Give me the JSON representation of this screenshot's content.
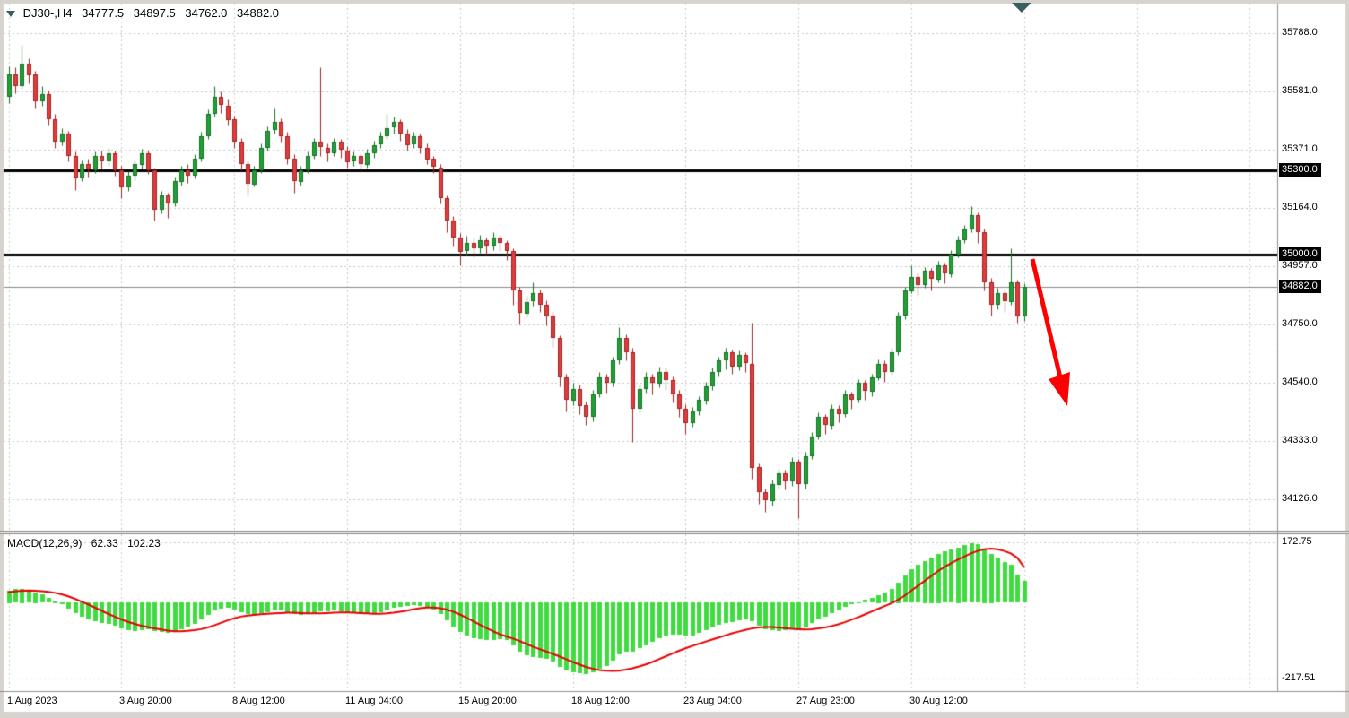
{
  "header": {
    "symbol_period": "DJ30-,H4",
    "open": "34777.5",
    "high": "34897.5",
    "low": "34762.0",
    "close": "34882.0"
  },
  "macd_header": {
    "name": "MACD(12,26,9)",
    "main_value": "62.33",
    "signal_value": "102.23"
  },
  "chart_data": {
    "type": "candlestick",
    "symbol": "DJ30-",
    "timeframe": "H4",
    "price_axis": {
      "ticks": [
        {
          "price": 35788,
          "label": "35788.0"
        },
        {
          "price": 35581,
          "label": "35581.0"
        },
        {
          "price": 35371,
          "label": "35371.0"
        },
        {
          "price": 35164,
          "label": "35164.0"
        },
        {
          "price": 34957,
          "label": "34957.0"
        },
        {
          "price": 34750,
          "label": "34750.0"
        },
        {
          "price": 34540,
          "label": "34540.0"
        },
        {
          "price": 34333,
          "label": "34333.0"
        },
        {
          "price": 34126,
          "label": "34126.0"
        }
      ]
    },
    "horizontal_levels": [
      {
        "price": 35300,
        "label": "35300.0"
      },
      {
        "price": 35000,
        "label": "35000.0"
      }
    ],
    "current_price": {
      "price": 34882,
      "label": "34882.0"
    },
    "time_axis": {
      "grid_interval_bars": 17,
      "labels": [
        {
          "text": "1 Aug 2023",
          "bar_index": 0
        },
        {
          "text": "3 Aug 20:00",
          "bar_index": 17
        },
        {
          "text": "8 Aug 12:00",
          "bar_index": 34
        },
        {
          "text": "11 Aug 04:00",
          "bar_index": 51
        },
        {
          "text": "15 Aug 20:00",
          "bar_index": 68
        },
        {
          "text": "18 Aug 12:00",
          "bar_index": 85
        },
        {
          "text": "23 Aug 04:00",
          "bar_index": 102
        },
        {
          "text": "27 Aug 23:00",
          "bar_index": 119
        },
        {
          "text": "30 Aug 12:00",
          "bar_index": 136
        }
      ]
    },
    "candles": [
      [
        35560,
        35670,
        35540,
        35640
      ],
      [
        35640,
        35665,
        35575,
        35600
      ],
      [
        35600,
        35745,
        35590,
        35680
      ],
      [
        35680,
        35700,
        35610,
        35640
      ],
      [
        35640,
        35655,
        35520,
        35545
      ],
      [
        35545,
        35600,
        35530,
        35570
      ],
      [
        35570,
        35585,
        35460,
        35480
      ],
      [
        35480,
        35500,
        35380,
        35400
      ],
      [
        35400,
        35450,
        35390,
        35430
      ],
      [
        35430,
        35440,
        35330,
        35350
      ],
      [
        35350,
        35365,
        35230,
        35270
      ],
      [
        35270,
        35335,
        35260,
        35320
      ],
      [
        35320,
        35340,
        35275,
        35300
      ],
      [
        35300,
        35365,
        35290,
        35350
      ],
      [
        35350,
        35370,
        35305,
        35330
      ],
      [
        35330,
        35380,
        35315,
        35360
      ],
      [
        35360,
        35370,
        35280,
        35300
      ],
      [
        35300,
        35315,
        35200,
        35240
      ],
      [
        35240,
        35295,
        35225,
        35280
      ],
      [
        35280,
        35335,
        35265,
        35320
      ],
      [
        35320,
        35375,
        35305,
        35360
      ],
      [
        35360,
        35370,
        35285,
        35300
      ],
      [
        35300,
        35310,
        35120,
        35160
      ],
      [
        35160,
        35225,
        35145,
        35210
      ],
      [
        35210,
        35220,
        35130,
        35180
      ],
      [
        35180,
        35275,
        35170,
        35260
      ],
      [
        35260,
        35315,
        35245,
        35300
      ],
      [
        35300,
        35320,
        35255,
        35280
      ],
      [
        35280,
        35355,
        35270,
        35340
      ],
      [
        35340,
        35435,
        35330,
        35420
      ],
      [
        35420,
        35515,
        35410,
        35500
      ],
      [
        35500,
        35600,
        35490,
        35560
      ],
      [
        35560,
        35580,
        35505,
        35530
      ],
      [
        35530,
        35550,
        35460,
        35480
      ],
      [
        35480,
        35495,
        35380,
        35400
      ],
      [
        35400,
        35415,
        35300,
        35320
      ],
      [
        35320,
        35335,
        35210,
        35250
      ],
      [
        35250,
        35315,
        35240,
        35300
      ],
      [
        35300,
        35395,
        35290,
        35380
      ],
      [
        35380,
        35455,
        35370,
        35440
      ],
      [
        35440,
        35520,
        35430,
        35470
      ],
      [
        35470,
        35485,
        35400,
        35420
      ],
      [
        35420,
        35435,
        35320,
        35340
      ],
      [
        35340,
        35355,
        35220,
        35260
      ],
      [
        35260,
        35315,
        35245,
        35300
      ],
      [
        35300,
        35365,
        35290,
        35350
      ],
      [
        35350,
        35415,
        35340,
        35400
      ],
      [
        35400,
        35665,
        35350,
        35380
      ],
      [
        35380,
        35395,
        35330,
        35360
      ],
      [
        35360,
        35415,
        35350,
        35400
      ],
      [
        35400,
        35410,
        35345,
        35370
      ],
      [
        35370,
        35385,
        35310,
        35330
      ],
      [
        35330,
        35365,
        35315,
        35350
      ],
      [
        35350,
        35360,
        35295,
        35320
      ],
      [
        35320,
        35375,
        35310,
        35360
      ],
      [
        35360,
        35405,
        35345,
        35390
      ],
      [
        35390,
        35435,
        35380,
        35420
      ],
      [
        35420,
        35500,
        35410,
        35450
      ],
      [
        35450,
        35490,
        35430,
        35470
      ],
      [
        35470,
        35480,
        35405,
        35430
      ],
      [
        35430,
        35445,
        35370,
        35390
      ],
      [
        35390,
        35435,
        35380,
        35420
      ],
      [
        35420,
        35430,
        35360,
        35380
      ],
      [
        35380,
        35395,
        35320,
        35340
      ],
      [
        35340,
        35350,
        35290,
        35310
      ],
      [
        35310,
        35320,
        35180,
        35200
      ],
      [
        35200,
        35210,
        35080,
        35120
      ],
      [
        35120,
        35135,
        35030,
        35060
      ],
      [
        35060,
        35075,
        34960,
        35010
      ],
      [
        35010,
        35065,
        34995,
        35040
      ],
      [
        35040,
        35055,
        34990,
        35020
      ],
      [
        35020,
        35070,
        35005,
        35050
      ],
      [
        35050,
        35060,
        35000,
        35030
      ],
      [
        35030,
        35080,
        35015,
        35060
      ],
      [
        35060,
        35070,
        35010,
        35040
      ],
      [
        35040,
        35050,
        34980,
        35010
      ],
      [
        35010,
        35020,
        34820,
        34870
      ],
      [
        34870,
        34885,
        34750,
        34790
      ],
      [
        34790,
        34850,
        34775,
        34830
      ],
      [
        34830,
        34900,
        34815,
        34860
      ],
      [
        34860,
        34875,
        34795,
        34820
      ],
      [
        34820,
        34835,
        34745,
        34780
      ],
      [
        34780,
        34795,
        34670,
        34700
      ],
      [
        34700,
        34710,
        34530,
        34560
      ],
      [
        34560,
        34575,
        34440,
        34480
      ],
      [
        34480,
        34540,
        34460,
        34520
      ],
      [
        34520,
        34535,
        34430,
        34460
      ],
      [
        34460,
        34475,
        34390,
        34420
      ],
      [
        34420,
        34515,
        34405,
        34500
      ],
      [
        34500,
        34580,
        34490,
        34560
      ],
      [
        34560,
        34575,
        34505,
        34540
      ],
      [
        34540,
        34635,
        34530,
        34620
      ],
      [
        34620,
        34740,
        34610,
        34700
      ],
      [
        34700,
        34715,
        34620,
        34650
      ],
      [
        34650,
        34665,
        34330,
        34450
      ],
      [
        34450,
        34535,
        34435,
        34520
      ],
      [
        34520,
        34580,
        34505,
        34560
      ],
      [
        34560,
        34575,
        34500,
        34540
      ],
      [
        34540,
        34600,
        34525,
        34580
      ],
      [
        34580,
        34595,
        34515,
        34550
      ],
      [
        34550,
        34565,
        34470,
        34500
      ],
      [
        34500,
        34515,
        34420,
        34450
      ],
      [
        34450,
        34465,
        34360,
        34400
      ],
      [
        34400,
        34455,
        34385,
        34440
      ],
      [
        34440,
        34495,
        34425,
        34480
      ],
      [
        34480,
        34545,
        34465,
        34530
      ],
      [
        34530,
        34595,
        34515,
        34580
      ],
      [
        34580,
        34635,
        34565,
        34620
      ],
      [
        34620,
        34665,
        34590,
        34650
      ],
      [
        34650,
        34660,
        34575,
        34600
      ],
      [
        34600,
        34655,
        34585,
        34640
      ],
      [
        34640,
        34650,
        34580,
        34610
      ],
      [
        34610,
        34755,
        34200,
        34240
      ],
      [
        34240,
        34255,
        34110,
        34150
      ],
      [
        34150,
        34165,
        34080,
        34120
      ],
      [
        34120,
        34195,
        34105,
        34180
      ],
      [
        34180,
        34235,
        34165,
        34220
      ],
      [
        34220,
        34230,
        34160,
        34190
      ],
      [
        34190,
        34275,
        34175,
        34260
      ],
      [
        34260,
        34270,
        34060,
        34180
      ],
      [
        34180,
        34295,
        34165,
        34280
      ],
      [
        34280,
        34365,
        34270,
        34350
      ],
      [
        34350,
        34435,
        34340,
        34420
      ],
      [
        34420,
        34430,
        34360,
        34390
      ],
      [
        34390,
        34465,
        34375,
        34450
      ],
      [
        34450,
        34460,
        34400,
        34430
      ],
      [
        34430,
        34515,
        34420,
        34500
      ],
      [
        34500,
        34510,
        34450,
        34480
      ],
      [
        34480,
        34555,
        34470,
        34540
      ],
      [
        34540,
        34550,
        34480,
        34510
      ],
      [
        34510,
        34575,
        34495,
        34560
      ],
      [
        34560,
        34625,
        34550,
        34610
      ],
      [
        34610,
        34620,
        34545,
        34580
      ],
      [
        34580,
        34665,
        34570,
        34650
      ],
      [
        34650,
        34795,
        34640,
        34780
      ],
      [
        34780,
        34885,
        34770,
        34870
      ],
      [
        34870,
        34960,
        34860,
        34920
      ],
      [
        34920,
        34935,
        34855,
        34890
      ],
      [
        34890,
        34955,
        34880,
        34940
      ],
      [
        34940,
        34950,
        34870,
        34910
      ],
      [
        34910,
        34975,
        34900,
        34960
      ],
      [
        34960,
        34970,
        34895,
        34930
      ],
      [
        34930,
        35015,
        34920,
        35000
      ],
      [
        35000,
        35065,
        34990,
        35050
      ],
      [
        35050,
        35105,
        35040,
        35090
      ],
      [
        35090,
        35170,
        35080,
        35140
      ],
      [
        35140,
        35150,
        35040,
        35080
      ],
      [
        35080,
        35090,
        34870,
        34900
      ],
      [
        34900,
        34915,
        34780,
        34820
      ],
      [
        34820,
        34880,
        34805,
        34860
      ],
      [
        34860,
        34870,
        34795,
        34830
      ],
      [
        34830,
        35020,
        34820,
        34900
      ],
      [
        34900,
        34910,
        34755,
        34780
      ],
      [
        34777.5,
        34897.5,
        34762,
        34882
      ]
    ],
    "macd": {
      "axis_ticks": [
        {
          "value": 172.75,
          "label": "172.75"
        },
        {
          "value": -217.51,
          "label": "-217.51"
        }
      ],
      "histogram": [
        35,
        38,
        40,
        36,
        30,
        24,
        14,
        4,
        -6,
        -18,
        -32,
        -42,
        -50,
        -55,
        -58,
        -62,
        -68,
        -75,
        -80,
        -82,
        -80,
        -76,
        -82,
        -85,
        -88,
        -84,
        -78,
        -70,
        -62,
        -50,
        -36,
        -24,
        -18,
        -16,
        -20,
        -28,
        -34,
        -36,
        -32,
        -28,
        -24,
        -24,
        -28,
        -34,
        -36,
        -34,
        -30,
        -26,
        -26,
        -24,
        -26,
        -30,
        -32,
        -34,
        -34,
        -32,
        -28,
        -22,
        -16,
        -12,
        -10,
        -8,
        -10,
        -14,
        -20,
        -34,
        -52,
        -70,
        -86,
        -96,
        -102,
        -106,
        -108,
        -108,
        -106,
        -108,
        -124,
        -142,
        -152,
        -156,
        -158,
        -162,
        -170,
        -184,
        -196,
        -200,
        -204,
        -206,
        -200,
        -190,
        -182,
        -168,
        -150,
        -140,
        -140,
        -132,
        -122,
        -112,
        -102,
        -96,
        -92,
        -92,
        -96,
        -94,
        -88,
        -80,
        -72,
        -64,
        -58,
        -56,
        -52,
        -48,
        -54,
        -66,
        -76,
        -80,
        -82,
        -80,
        -76,
        -78,
        -72,
        -60,
        -48,
        -40,
        -30,
        -22,
        -12,
        -6,
        2,
        8,
        14,
        22,
        28,
        40,
        58,
        78,
        96,
        108,
        120,
        130,
        140,
        146,
        152,
        158,
        164,
        170,
        168,
        156,
        140,
        128,
        116,
        108,
        80,
        62
      ],
      "signal": [
        30,
        32,
        34,
        35,
        34,
        33,
        31,
        28,
        24,
        18,
        11,
        3,
        -5,
        -14,
        -23,
        -32,
        -40,
        -48,
        -55,
        -61,
        -66,
        -70,
        -74,
        -77,
        -80,
        -82,
        -82,
        -81,
        -79,
        -76,
        -71,
        -65,
        -58,
        -51,
        -45,
        -40,
        -37,
        -35,
        -33,
        -32,
        -31,
        -30,
        -29,
        -29,
        -30,
        -31,
        -31,
        -31,
        -30,
        -29,
        -28,
        -28,
        -29,
        -30,
        -31,
        -32,
        -32,
        -31,
        -29,
        -26,
        -23,
        -19,
        -16,
        -14,
        -14,
        -16,
        -20,
        -26,
        -34,
        -43,
        -53,
        -63,
        -73,
        -82,
        -90,
        -97,
        -103,
        -110,
        -118,
        -126,
        -133,
        -140,
        -147,
        -154,
        -162,
        -170,
        -177,
        -184,
        -189,
        -193,
        -195,
        -196,
        -195,
        -192,
        -188,
        -183,
        -177,
        -170,
        -162,
        -154,
        -146,
        -138,
        -131,
        -124,
        -118,
        -112,
        -106,
        -100,
        -94,
        -88,
        -83,
        -78,
        -74,
        -71,
        -70,
        -70,
        -71,
        -73,
        -75,
        -76,
        -77,
        -76,
        -74,
        -71,
        -67,
        -62,
        -56,
        -49,
        -42,
        -34,
        -26,
        -18,
        -10,
        -2,
        8,
        20,
        34,
        48,
        62,
        76,
        90,
        102,
        113,
        123,
        132,
        141,
        148,
        153,
        155,
        153,
        148,
        141,
        128,
        102
      ]
    }
  },
  "annotations": {
    "trend_arrow": {
      "direction": "down-right",
      "color": "#ff0000"
    }
  },
  "colors": {
    "bull": "#21a036",
    "bull_border": "#156f24",
    "bear": "#e23c3c",
    "bear_border": "#9e2323",
    "histogram": "#3fdc3f",
    "signal": "#e60000",
    "grid": "#c8c8c8",
    "level_line": "#000000",
    "current_price_line": "#8a8a8a",
    "badge_bg": "#000000",
    "badge_text": "#ffffff",
    "frame": "#d6d3ce",
    "separator": "#8f8f8f",
    "separator_fill": "#e4e1da",
    "marker": "#3a5f5f"
  }
}
